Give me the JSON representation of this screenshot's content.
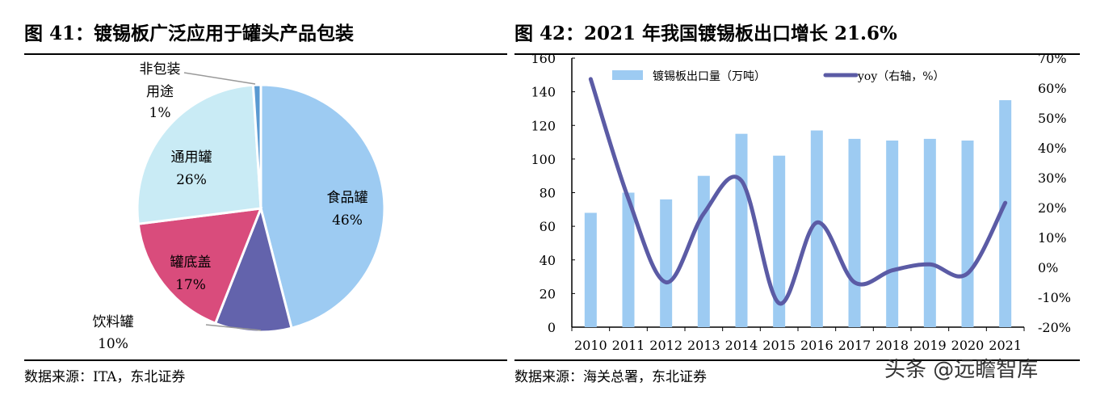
{
  "left": {
    "title": "图 41：镀锡板广泛应用于罐头产品包装",
    "source": "数据来源：ITA，东北证券"
  },
  "right": {
    "title": "图 42：2021 年我国镀锡板出口增长 21.6%",
    "source": "数据来源：海关总署，东北证券"
  },
  "watermark": "头条 @远瞻智库",
  "chart_data": [
    {
      "type": "pie",
      "title": "图 41：镀锡板广泛应用于罐头产品包装",
      "start": "12 o'clock",
      "direction": "clockwise",
      "slices": [
        {
          "label": "食品罐",
          "value": 46,
          "pct": "46%",
          "color": "#9DCBF2"
        },
        {
          "label": "饮料罐",
          "value": 10,
          "pct": "10%",
          "color": "#6363AC"
        },
        {
          "label": "罐底盖",
          "value": 17,
          "pct": "17%",
          "color": "#D94C7C"
        },
        {
          "label": "通用罐",
          "value": 26,
          "pct": "26%",
          "color": "#C9EBF5"
        },
        {
          "label": "非包装用途",
          "value": 1,
          "pct": "1%",
          "color": "#5A9AD2"
        }
      ]
    },
    {
      "type": "bar+line",
      "title": "图 42：2021 年我国镀锡板出口增长 21.6%",
      "categories": [
        "2010",
        "2011",
        "2012",
        "2013",
        "2014",
        "2015",
        "2016",
        "2017",
        "2018",
        "2019",
        "2020",
        "2021"
      ],
      "series": [
        {
          "name": "镀锡板出口量（万吨）",
          "type": "bar",
          "axis": "left",
          "color": "#9DCBF2",
          "values": [
            68,
            80,
            76,
            90,
            115,
            102,
            117,
            112,
            111,
            112,
            111,
            135
          ]
        },
        {
          "name": "yoy（右轴，%）",
          "type": "line",
          "axis": "right",
          "color": "#5B5BA5",
          "values": [
            63,
            23,
            -5,
            18,
            29,
            -12,
            15,
            -5,
            -1,
            1,
            -2,
            21.6
          ]
        }
      ],
      "ylim": [
        0,
        160
      ],
      "yticks": [
        "0",
        "20",
        "40",
        "60",
        "80",
        "100",
        "120",
        "140",
        "160"
      ],
      "y2lim": [
        -20,
        70
      ],
      "y2ticks": [
        "-20%",
        "-10%",
        "0%",
        "10%",
        "20%",
        "30%",
        "40%",
        "50%",
        "60%",
        "70%"
      ],
      "legend": "top",
      "grid": false
    }
  ]
}
